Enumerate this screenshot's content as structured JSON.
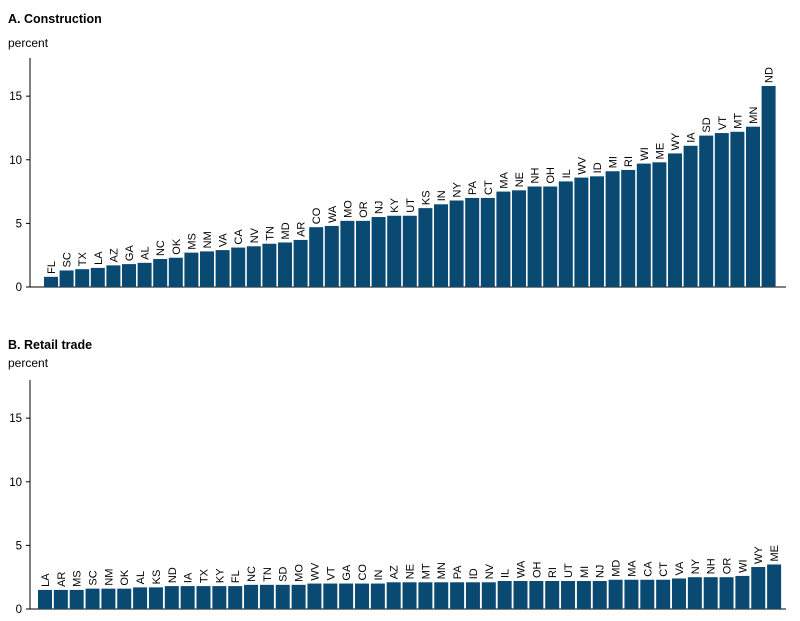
{
  "chart_data": [
    {
      "type": "bar",
      "title": "A. Construction",
      "ylabel": "percent",
      "ylim": [
        0,
        18
      ],
      "yticks": [
        0,
        5,
        10,
        15
      ],
      "color": "#0a4a72",
      "categories": [
        "FL",
        "SC",
        "TX",
        "LA",
        "AZ",
        "GA",
        "AL",
        "NC",
        "OK",
        "MS",
        "NM",
        "VA",
        "CA",
        "NV",
        "TN",
        "MD",
        "AR",
        "CO",
        "WA",
        "MO",
        "OR",
        "NJ",
        "KY",
        "UT",
        "KS",
        "IN",
        "NY",
        "PA",
        "CT",
        "MA",
        "NE",
        "NH",
        "OH",
        "IL",
        "WV",
        "ID",
        "MI",
        "RI",
        "WI",
        "ME",
        "WY",
        "IA",
        "SD",
        "VT",
        "MT",
        "MN",
        "ND"
      ],
      "values": [
        0.8,
        1.3,
        1.4,
        1.5,
        1.7,
        1.8,
        1.9,
        2.2,
        2.3,
        2.7,
        2.8,
        2.9,
        3.1,
        3.2,
        3.4,
        3.5,
        3.7,
        4.7,
        4.8,
        5.2,
        5.2,
        5.5,
        5.6,
        5.6,
        6.2,
        6.5,
        6.8,
        7.0,
        7.0,
        7.5,
        7.6,
        7.9,
        7.9,
        8.3,
        8.6,
        8.7,
        9.1,
        9.2,
        9.7,
        9.8,
        10.5,
        11.1,
        11.9,
        12.1,
        12.2,
        12.6,
        15.8
      ],
      "grid": false
    },
    {
      "type": "bar",
      "title": "B. Retail trade",
      "ylabel": "percent",
      "ylim": [
        0,
        18
      ],
      "yticks": [
        0,
        5,
        10,
        15
      ],
      "color": "#0a4a72",
      "categories": [
        "LA",
        "AR",
        "MS",
        "SC",
        "NM",
        "OK",
        "AL",
        "KS",
        "ND",
        "IA",
        "TX",
        "KY",
        "FL",
        "NC",
        "TN",
        "SD",
        "MO",
        "WV",
        "VT",
        "GA",
        "CO",
        "IN",
        "AZ",
        "NE",
        "MT",
        "MN",
        "PA",
        "ID",
        "NV",
        "IL",
        "WA",
        "OH",
        "RI",
        "UT",
        "MI",
        "NJ",
        "MD",
        "MA",
        "CA",
        "CT",
        "VA",
        "NY",
        "NH",
        "OR",
        "WI",
        "WY",
        "ME"
      ],
      "values": [
        1.5,
        1.5,
        1.5,
        1.6,
        1.6,
        1.6,
        1.7,
        1.7,
        1.8,
        1.8,
        1.8,
        1.8,
        1.8,
        1.9,
        1.9,
        1.9,
        1.9,
        2.0,
        2.0,
        2.0,
        2.0,
        2.0,
        2.1,
        2.1,
        2.1,
        2.1,
        2.1,
        2.1,
        2.1,
        2.2,
        2.2,
        2.2,
        2.2,
        2.2,
        2.2,
        2.2,
        2.3,
        2.3,
        2.3,
        2.3,
        2.4,
        2.5,
        2.5,
        2.5,
        2.6,
        3.3,
        3.5
      ],
      "grid": false
    }
  ]
}
